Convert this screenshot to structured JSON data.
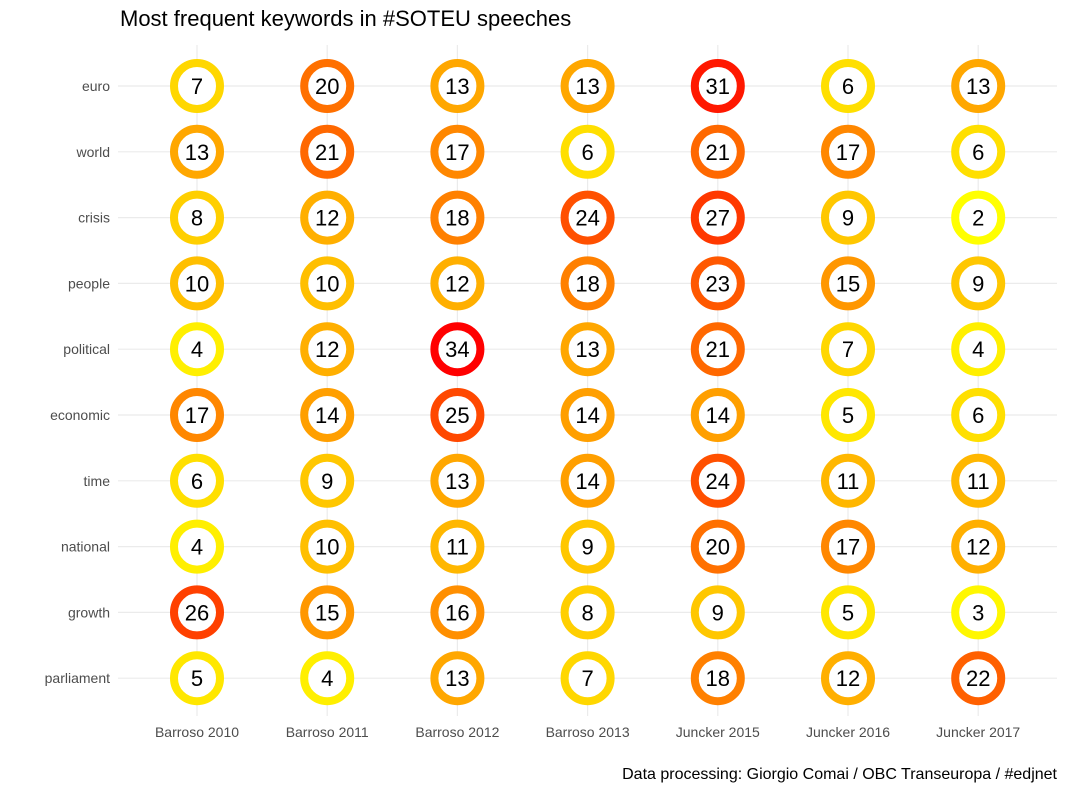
{
  "chart_data": {
    "type": "heatmap",
    "title": "Most frequent keywords in #SOTEU speeches",
    "caption": "Data processing:  Giorgio Comai / OBC Transeuropa / #edjnet",
    "xlabel": "",
    "ylabel": "",
    "grid": true,
    "categories": [
      "Barroso 2010",
      "Barroso 2011",
      "Barroso 2012",
      "Barroso 2013",
      "Juncker 2015",
      "Juncker 2016",
      "Juncker 2017"
    ],
    "rows": [
      "euro",
      "world",
      "crisis",
      "people",
      "political",
      "economic",
      "time",
      "national",
      "growth",
      "parliament"
    ],
    "values": [
      [
        7,
        20,
        13,
        13,
        31,
        6,
        13
      ],
      [
        13,
        21,
        17,
        6,
        21,
        17,
        6
      ],
      [
        8,
        12,
        18,
        24,
        27,
        9,
        2
      ],
      [
        10,
        10,
        12,
        18,
        23,
        15,
        9
      ],
      [
        4,
        12,
        34,
        13,
        21,
        7,
        4
      ],
      [
        17,
        14,
        25,
        14,
        14,
        5,
        6
      ],
      [
        6,
        9,
        13,
        14,
        24,
        11,
        11
      ],
      [
        4,
        10,
        11,
        9,
        20,
        17,
        12
      ],
      [
        26,
        15,
        16,
        8,
        9,
        5,
        3
      ],
      [
        5,
        4,
        13,
        7,
        18,
        12,
        22
      ]
    ],
    "color_scale": {
      "low": "#FFFF00",
      "high": "#FF0000"
    },
    "legend": "none"
  }
}
